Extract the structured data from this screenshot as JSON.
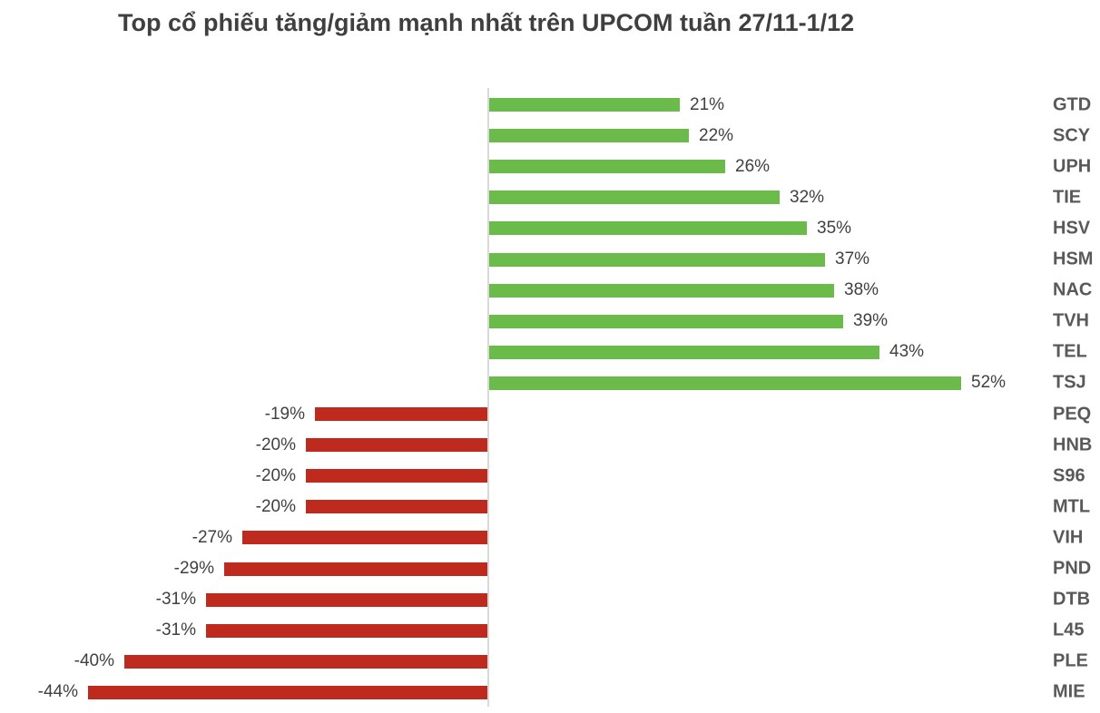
{
  "chart_data": {
    "type": "bar",
    "orientation": "horizontal",
    "title": "Top cổ phiếu tăng/giảm mạnh nhất trên UPCOM tuần 27/11-1/12",
    "categories": [
      "GTD",
      "SCY",
      "UPH",
      "TIE",
      "HSV",
      "HSM",
      "NAC",
      "TVH",
      "TEL",
      "TSJ",
      "PEQ",
      "HNB",
      "S96",
      "MTL",
      "VIH",
      "PND",
      "DTB",
      "L45",
      "PLE",
      "MIE"
    ],
    "values": [
      21,
      22,
      26,
      32,
      35,
      37,
      38,
      39,
      43,
      52,
      -19,
      -20,
      -20,
      -20,
      -27,
      -29,
      -31,
      -31,
      -40,
      -44
    ],
    "value_labels": [
      "21%",
      "22%",
      "26%",
      "32%",
      "35%",
      "37%",
      "38%",
      "39%",
      "43%",
      "52%",
      "-19%",
      "-20%",
      "-20%",
      "-20%",
      "-27%",
      "-29%",
      "-31%",
      "-31%",
      "-40%",
      "-44%"
    ],
    "xlabel": "",
    "ylabel": "",
    "xlim": [
      -44,
      52
    ],
    "grid": false,
    "legend": false,
    "zero_baseline_axis": true,
    "colors": {
      "positive": "#6abb49",
      "negative": "#be2a1e",
      "axis_line": "#d9d9d9",
      "value_text": "#404040",
      "ticker_text": "#595959",
      "title_text": "#3f3f3f"
    }
  }
}
